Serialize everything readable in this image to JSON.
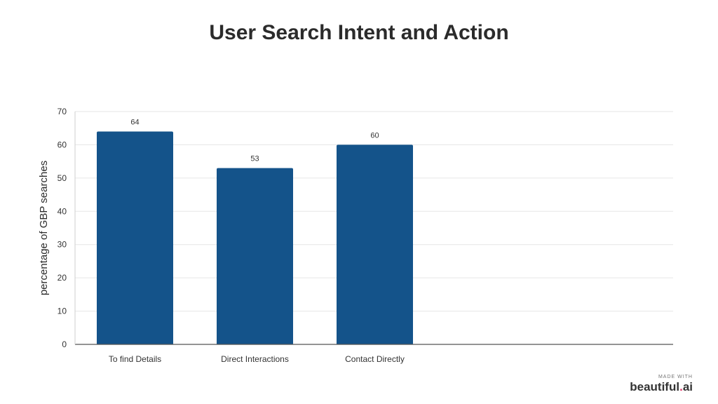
{
  "chart_data": {
    "type": "bar",
    "title": "User Search Intent and Action",
    "ylabel": "percentage of GBP searches",
    "xlabel": "",
    "categories": [
      "To find Details",
      "Direct Interactions",
      "Contact Directly"
    ],
    "values": [
      64,
      53,
      60
    ],
    "ylim": [
      0,
      70
    ],
    "yticks": [
      0,
      10,
      20,
      30,
      40,
      50,
      60,
      70
    ],
    "grid": true,
    "data_labels": true,
    "bar_color": "#14538a"
  },
  "watermark": {
    "made_with": "MADE WITH",
    "brand": "beautiful",
    "brand_dot": ".",
    "brand_suffix": "ai"
  }
}
